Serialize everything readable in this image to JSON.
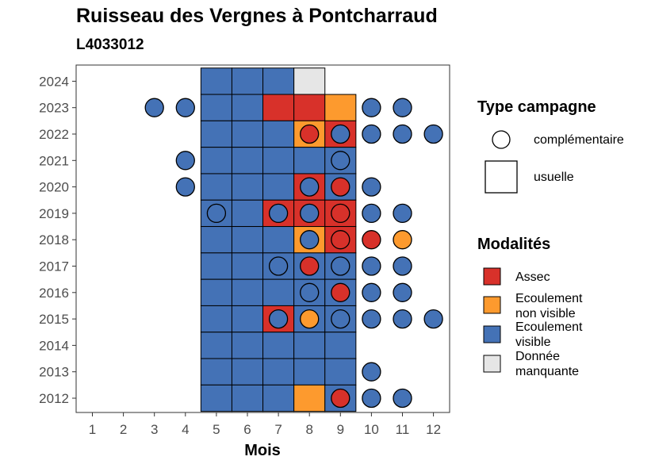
{
  "chart_data": {
    "type": "heatmap",
    "title": "Ruisseau des Vergnes à Pontcharraud",
    "subtitle": "L4033012",
    "xlabel": "Mois",
    "ylabel": "",
    "x_ticks": [
      "1",
      "2",
      "3",
      "4",
      "5",
      "6",
      "7",
      "8",
      "9",
      "10",
      "11",
      "12"
    ],
    "y_ticks": [
      "2012",
      "2013",
      "2014",
      "2015",
      "2016",
      "2017",
      "2018",
      "2019",
      "2020",
      "2021",
      "2022",
      "2023",
      "2024"
    ],
    "colors": {
      "Assec": "#d8312a",
      "Ecoulement non visible": "#fd9a2e",
      "Ecoulement visible": "#4472b6",
      "Donnée manquante": "#e6e6e6"
    },
    "legend_type": {
      "title": "Type campagne",
      "items": [
        "complémentaire",
        "usuelle"
      ]
    },
    "legend_modalites": {
      "title": "Modalités",
      "items": [
        {
          "key": "Assec",
          "lines": [
            "Assec"
          ]
        },
        {
          "key": "Ecoulement non visible",
          "lines": [
            "Ecoulement",
            "non visible"
          ]
        },
        {
          "key": "Ecoulement visible",
          "lines": [
            "Ecoulement",
            "visible"
          ]
        },
        {
          "key": "Donnée manquante",
          "lines": [
            "Donnée",
            "manquante"
          ]
        }
      ]
    },
    "usuelle": [
      {
        "year": 2024,
        "month": 5,
        "modalite": "Ecoulement visible"
      },
      {
        "year": 2024,
        "month": 6,
        "modalite": "Ecoulement visible"
      },
      {
        "year": 2024,
        "month": 7,
        "modalite": "Ecoulement visible"
      },
      {
        "year": 2024,
        "month": 8,
        "modalite": "Donnée manquante"
      },
      {
        "year": 2023,
        "month": 5,
        "modalite": "Ecoulement visible"
      },
      {
        "year": 2023,
        "month": 6,
        "modalite": "Ecoulement visible"
      },
      {
        "year": 2023,
        "month": 7,
        "modalite": "Assec"
      },
      {
        "year": 2023,
        "month": 8,
        "modalite": "Assec"
      },
      {
        "year": 2023,
        "month": 9,
        "modalite": "Ecoulement non visible"
      },
      {
        "year": 2022,
        "month": 5,
        "modalite": "Ecoulement visible"
      },
      {
        "year": 2022,
        "month": 6,
        "modalite": "Ecoulement visible"
      },
      {
        "year": 2022,
        "month": 7,
        "modalite": "Ecoulement visible"
      },
      {
        "year": 2022,
        "month": 8,
        "modalite": "Ecoulement non visible"
      },
      {
        "year": 2022,
        "month": 9,
        "modalite": "Assec"
      },
      {
        "year": 2021,
        "month": 5,
        "modalite": "Ecoulement visible"
      },
      {
        "year": 2021,
        "month": 6,
        "modalite": "Ecoulement visible"
      },
      {
        "year": 2021,
        "month": 7,
        "modalite": "Ecoulement visible"
      },
      {
        "year": 2021,
        "month": 8,
        "modalite": "Ecoulement visible"
      },
      {
        "year": 2021,
        "month": 9,
        "modalite": "Ecoulement visible"
      },
      {
        "year": 2020,
        "month": 5,
        "modalite": "Ecoulement visible"
      },
      {
        "year": 2020,
        "month": 6,
        "modalite": "Ecoulement visible"
      },
      {
        "year": 2020,
        "month": 7,
        "modalite": "Ecoulement visible"
      },
      {
        "year": 2020,
        "month": 8,
        "modalite": "Assec"
      },
      {
        "year": 2020,
        "month": 9,
        "modalite": "Ecoulement visible"
      },
      {
        "year": 2019,
        "month": 5,
        "modalite": "Ecoulement visible"
      },
      {
        "year": 2019,
        "month": 6,
        "modalite": "Ecoulement visible"
      },
      {
        "year": 2019,
        "month": 7,
        "modalite": "Assec"
      },
      {
        "year": 2019,
        "month": 8,
        "modalite": "Assec"
      },
      {
        "year": 2019,
        "month": 9,
        "modalite": "Assec"
      },
      {
        "year": 2018,
        "month": 5,
        "modalite": "Ecoulement visible"
      },
      {
        "year": 2018,
        "month": 6,
        "modalite": "Ecoulement visible"
      },
      {
        "year": 2018,
        "month": 7,
        "modalite": "Ecoulement visible"
      },
      {
        "year": 2018,
        "month": 8,
        "modalite": "Ecoulement non visible"
      },
      {
        "year": 2018,
        "month": 9,
        "modalite": "Assec"
      },
      {
        "year": 2017,
        "month": 5,
        "modalite": "Ecoulement visible"
      },
      {
        "year": 2017,
        "month": 6,
        "modalite": "Ecoulement visible"
      },
      {
        "year": 2017,
        "month": 7,
        "modalite": "Ecoulement visible"
      },
      {
        "year": 2017,
        "month": 8,
        "modalite": "Ecoulement visible"
      },
      {
        "year": 2017,
        "month": 9,
        "modalite": "Ecoulement visible"
      },
      {
        "year": 2016,
        "month": 5,
        "modalite": "Ecoulement visible"
      },
      {
        "year": 2016,
        "month": 6,
        "modalite": "Ecoulement visible"
      },
      {
        "year": 2016,
        "month": 7,
        "modalite": "Ecoulement visible"
      },
      {
        "year": 2016,
        "month": 8,
        "modalite": "Ecoulement visible"
      },
      {
        "year": 2016,
        "month": 9,
        "modalite": "Ecoulement visible"
      },
      {
        "year": 2015,
        "month": 5,
        "modalite": "Ecoulement visible"
      },
      {
        "year": 2015,
        "month": 6,
        "modalite": "Ecoulement visible"
      },
      {
        "year": 2015,
        "month": 7,
        "modalite": "Assec"
      },
      {
        "year": 2015,
        "month": 8,
        "modalite": "Ecoulement visible"
      },
      {
        "year": 2015,
        "month": 9,
        "modalite": "Ecoulement visible"
      },
      {
        "year": 2014,
        "month": 5,
        "modalite": "Ecoulement visible"
      },
      {
        "year": 2014,
        "month": 6,
        "modalite": "Ecoulement visible"
      },
      {
        "year": 2014,
        "month": 7,
        "modalite": "Ecoulement visible"
      },
      {
        "year": 2014,
        "month": 8,
        "modalite": "Ecoulement visible"
      },
      {
        "year": 2014,
        "month": 9,
        "modalite": "Ecoulement visible"
      },
      {
        "year": 2013,
        "month": 5,
        "modalite": "Ecoulement visible"
      },
      {
        "year": 2013,
        "month": 6,
        "modalite": "Ecoulement visible"
      },
      {
        "year": 2013,
        "month": 7,
        "modalite": "Ecoulement visible"
      },
      {
        "year": 2013,
        "month": 8,
        "modalite": "Ecoulement visible"
      },
      {
        "year": 2013,
        "month": 9,
        "modalite": "Ecoulement visible"
      },
      {
        "year": 2012,
        "month": 5,
        "modalite": "Ecoulement visible"
      },
      {
        "year": 2012,
        "month": 6,
        "modalite": "Ecoulement visible"
      },
      {
        "year": 2012,
        "month": 7,
        "modalite": "Ecoulement visible"
      },
      {
        "year": 2012,
        "month": 8,
        "modalite": "Ecoulement non visible"
      },
      {
        "year": 2012,
        "month": 9,
        "modalite": "Ecoulement visible"
      }
    ],
    "complementaire": [
      {
        "year": 2023,
        "month": 3,
        "modalite": "Ecoulement visible"
      },
      {
        "year": 2023,
        "month": 4,
        "modalite": "Ecoulement visible"
      },
      {
        "year": 2023,
        "month": 10,
        "modalite": "Ecoulement visible"
      },
      {
        "year": 2023,
        "month": 11,
        "modalite": "Ecoulement visible"
      },
      {
        "year": 2022,
        "month": 8,
        "modalite": "Assec"
      },
      {
        "year": 2022,
        "month": 9,
        "modalite": "Ecoulement visible"
      },
      {
        "year": 2022,
        "month": 10,
        "modalite": "Ecoulement visible"
      },
      {
        "year": 2022,
        "month": 11,
        "modalite": "Ecoulement visible"
      },
      {
        "year": 2022,
        "month": 12,
        "modalite": "Ecoulement visible"
      },
      {
        "year": 2021,
        "month": 4,
        "modalite": "Ecoulement visible"
      },
      {
        "year": 2021,
        "month": 9,
        "modalite": "Ecoulement visible"
      },
      {
        "year": 2020,
        "month": 4,
        "modalite": "Ecoulement visible"
      },
      {
        "year": 2020,
        "month": 8,
        "modalite": "Ecoulement visible"
      },
      {
        "year": 2020,
        "month": 9,
        "modalite": "Assec"
      },
      {
        "year": 2020,
        "month": 10,
        "modalite": "Ecoulement visible"
      },
      {
        "year": 2019,
        "month": 5,
        "modalite": "Ecoulement visible"
      },
      {
        "year": 2019,
        "month": 7,
        "modalite": "Ecoulement visible"
      },
      {
        "year": 2019,
        "month": 8,
        "modalite": "Ecoulement visible"
      },
      {
        "year": 2019,
        "month": 9,
        "modalite": "Assec"
      },
      {
        "year": 2019,
        "month": 10,
        "modalite": "Ecoulement visible"
      },
      {
        "year": 2019,
        "month": 11,
        "modalite": "Ecoulement visible"
      },
      {
        "year": 2018,
        "month": 8,
        "modalite": "Ecoulement visible"
      },
      {
        "year": 2018,
        "month": 9,
        "modalite": "Assec"
      },
      {
        "year": 2018,
        "month": 10,
        "modalite": "Assec"
      },
      {
        "year": 2018,
        "month": 11,
        "modalite": "Ecoulement non visible"
      },
      {
        "year": 2017,
        "month": 7,
        "modalite": "Ecoulement visible"
      },
      {
        "year": 2017,
        "month": 8,
        "modalite": "Assec"
      },
      {
        "year": 2017,
        "month": 9,
        "modalite": "Ecoulement visible"
      },
      {
        "year": 2017,
        "month": 10,
        "modalite": "Ecoulement visible"
      },
      {
        "year": 2017,
        "month": 11,
        "modalite": "Ecoulement visible"
      },
      {
        "year": 2016,
        "month": 8,
        "modalite": "Ecoulement visible"
      },
      {
        "year": 2016,
        "month": 9,
        "modalite": "Assec"
      },
      {
        "year": 2016,
        "month": 10,
        "modalite": "Ecoulement visible"
      },
      {
        "year": 2016,
        "month": 11,
        "modalite": "Ecoulement visible"
      },
      {
        "year": 2015,
        "month": 7,
        "modalite": "Ecoulement visible"
      },
      {
        "year": 2015,
        "month": 8,
        "modalite": "Ecoulement non visible"
      },
      {
        "year": 2015,
        "month": 9,
        "modalite": "Ecoulement visible"
      },
      {
        "year": 2015,
        "month": 10,
        "modalite": "Ecoulement visible"
      },
      {
        "year": 2015,
        "month": 11,
        "modalite": "Ecoulement visible"
      },
      {
        "year": 2015,
        "month": 12,
        "modalite": "Ecoulement visible"
      },
      {
        "year": 2013,
        "month": 10,
        "modalite": "Ecoulement visible"
      },
      {
        "year": 2012,
        "month": 9,
        "modalite": "Assec"
      },
      {
        "year": 2012,
        "month": 10,
        "modalite": "Ecoulement visible"
      },
      {
        "year": 2012,
        "month": 11,
        "modalite": "Ecoulement visible"
      }
    ]
  }
}
